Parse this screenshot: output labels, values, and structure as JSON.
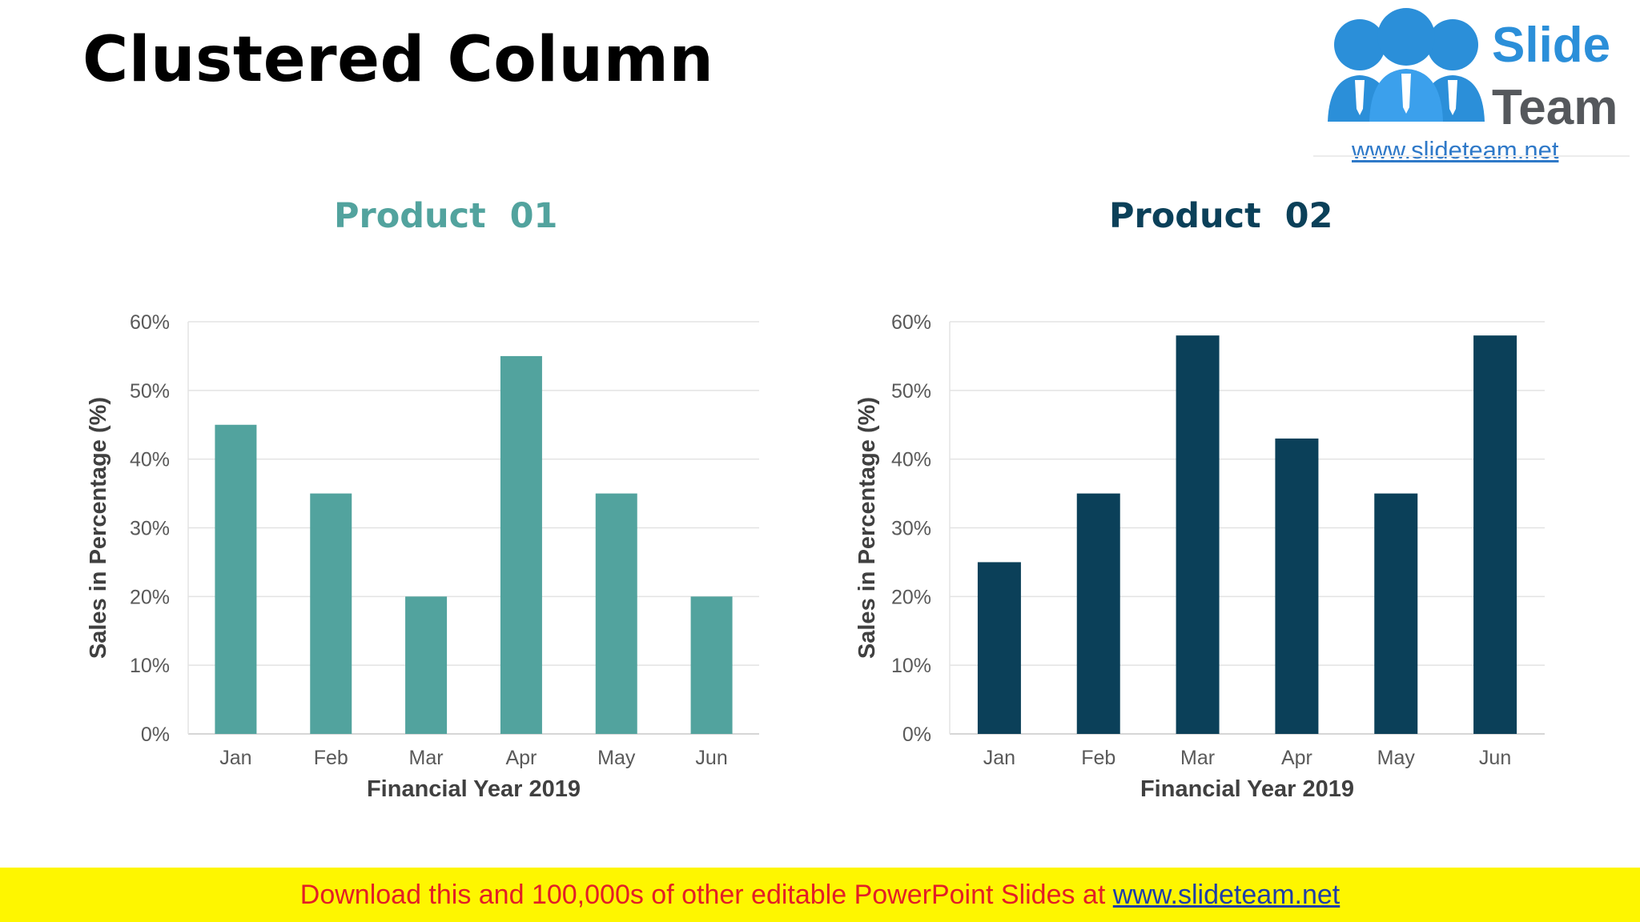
{
  "slide": {
    "title": "Clustered Column"
  },
  "logo": {
    "word1": "Slide",
    "word2": "Team",
    "url": "www.slideteam.net"
  },
  "banner": {
    "text": "Download this and 100,000s of other editable PowerPoint Slides at",
    "link": "www.slideteam.net"
  },
  "colors": {
    "product1": "#52a39e",
    "product2": "#0b4059",
    "banner_bg": "#fef600",
    "banner_text": "#e21f26",
    "logo_blue": "#2b8fd9"
  },
  "chart_data": [
    {
      "type": "bar",
      "title": "Product  01",
      "xlabel": "Financial Year 2019",
      "ylabel": "Sales in Percentage (%)",
      "categories": [
        "Jan",
        "Feb",
        "Mar",
        "Apr",
        "May",
        "Jun"
      ],
      "values": [
        45,
        35,
        20,
        55,
        35,
        20
      ],
      "ylim": [
        0,
        60
      ],
      "yticks": [
        "0%",
        "10%",
        "20%",
        "30%",
        "40%",
        "50%",
        "60%"
      ],
      "color": "#52a39e",
      "grid": true
    },
    {
      "type": "bar",
      "title": "Product  02",
      "xlabel": "Financial Year 2019",
      "ylabel": "Sales in Percentage (%)",
      "categories": [
        "Jan",
        "Feb",
        "Mar",
        "Apr",
        "May",
        "Jun"
      ],
      "values": [
        25,
        35,
        58,
        43,
        35,
        58
      ],
      "ylim": [
        0,
        60
      ],
      "yticks": [
        "0%",
        "10%",
        "20%",
        "30%",
        "40%",
        "50%",
        "60%"
      ],
      "color": "#0b4059",
      "grid": true
    }
  ]
}
